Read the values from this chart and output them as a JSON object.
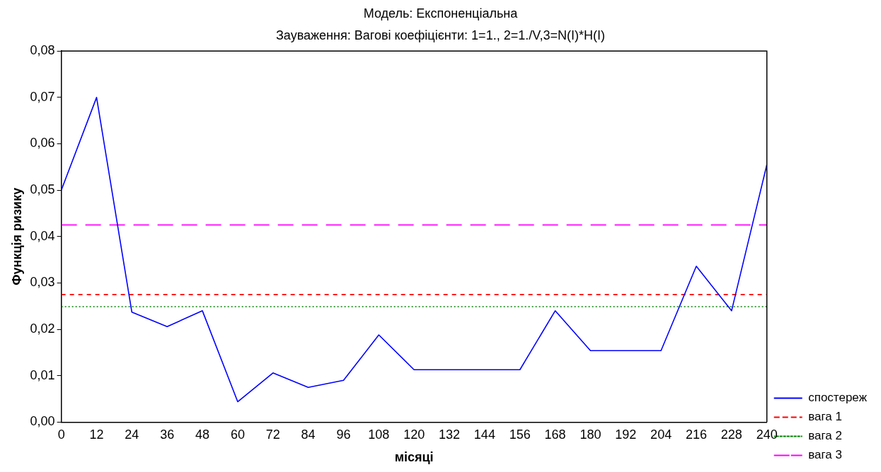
{
  "chart_data": {
    "type": "line",
    "title": "Модель: Експоненціальна",
    "subtitle": "Зауваження: Вагові коефіцієнти: 1=1., 2=1./V,3=N(I)*H(I)",
    "xlabel": "місяці",
    "ylabel": "Функція ризику",
    "x": [
      0,
      12,
      24,
      36,
      48,
      60,
      72,
      84,
      96,
      108,
      120,
      132,
      144,
      156,
      168,
      180,
      192,
      204,
      216,
      228,
      240
    ],
    "series": [
      {
        "name": "спостереж",
        "color": "#0000ff",
        "line_style": "solid",
        "values": [
          0.05,
          0.07,
          0.0237,
          0.0206,
          0.024,
          0.0044,
          0.0106,
          0.0075,
          0.009,
          0.0188,
          0.0113,
          0.0113,
          0.0113,
          0.0113,
          0.024,
          0.0154,
          0.0154,
          0.0154,
          0.0336,
          0.024,
          0.0555
        ]
      },
      {
        "name": "вага 1",
        "color": "#ff0000",
        "line_style": "dashed",
        "values": [
          0.0275,
          0.0275,
          0.0275,
          0.0275,
          0.0275,
          0.0275,
          0.0275,
          0.0275,
          0.0275,
          0.0275,
          0.0275,
          0.0275,
          0.0275,
          0.0275,
          0.0275,
          0.0275,
          0.0275,
          0.0275,
          0.0275,
          0.0275,
          0.0275
        ]
      },
      {
        "name": "вага 2",
        "color": "#008000",
        "line_style": "dotted",
        "values": [
          0.0249,
          0.0249,
          0.0249,
          0.0249,
          0.0249,
          0.0249,
          0.0249,
          0.0249,
          0.0249,
          0.0249,
          0.0249,
          0.0249,
          0.0249,
          0.0249,
          0.0249,
          0.0249,
          0.0249,
          0.0249,
          0.0249,
          0.0249,
          0.0249
        ]
      },
      {
        "name": "вага 3",
        "color": "#ff00ff",
        "line_style": "dashed",
        "values": [
          0.0425,
          0.0425,
          0.0425,
          0.0425,
          0.0425,
          0.0425,
          0.0425,
          0.0425,
          0.0425,
          0.0425,
          0.0425,
          0.0425,
          0.0425,
          0.0425,
          0.0425,
          0.0425,
          0.0425,
          0.0425,
          0.0425,
          0.0425,
          0.0425
        ]
      }
    ],
    "xlim": [
      0,
      240
    ],
    "xticks": [
      0,
      12,
      24,
      36,
      48,
      60,
      72,
      84,
      96,
      108,
      120,
      132,
      144,
      156,
      168,
      180,
      192,
      204,
      216,
      228,
      240
    ],
    "ylim": [
      0,
      0.08
    ],
    "yticks": [
      {
        "value": 0,
        "label": "0,00"
      },
      {
        "value": 0.01,
        "label": "0,01"
      },
      {
        "value": 0.02,
        "label": "0,02"
      },
      {
        "value": 0.03,
        "label": "0,03"
      },
      {
        "value": 0.04,
        "label": "0,04"
      },
      {
        "value": 0.05,
        "label": "0,05"
      },
      {
        "value": 0.06,
        "label": "0,06"
      },
      {
        "value": 0.07,
        "label": "0,07"
      },
      {
        "value": 0.08,
        "label": "0,08"
      }
    ],
    "grid": false,
    "legend": "bottom right",
    "marker": "none"
  }
}
